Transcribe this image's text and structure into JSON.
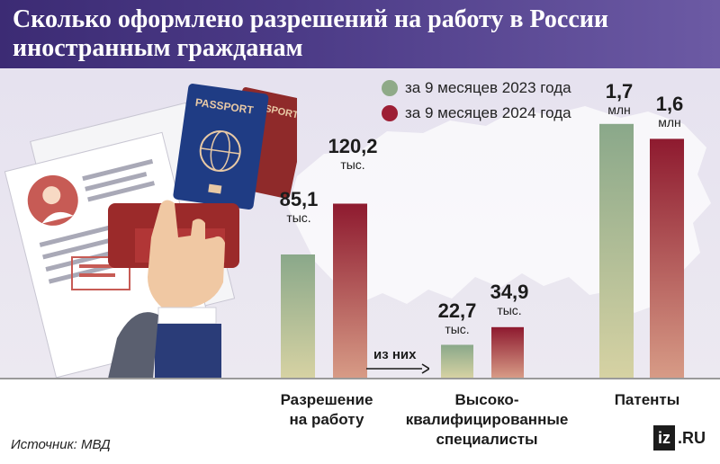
{
  "header": {
    "title": "Сколько оформлено разрешений на работу в России иностранным гражданам"
  },
  "legend": [
    {
      "label": "за 9 месяцев 2023 года",
      "color": "#8faa88"
    },
    {
      "label": "за 9 месяцев 2024 года",
      "color": "#9d1f35"
    }
  ],
  "chart_data": {
    "type": "bar",
    "title": "Сколько оформлено разрешений на работу в России иностранным гражданам",
    "categories": [
      "Разрешение на работу",
      "Высоко-квалифицированные специалисты",
      "Патенты"
    ],
    "series": [
      {
        "name": "за 9 месяцев 2023 года",
        "values": [
          85.1,
          22.7,
          1.7
        ],
        "labels": [
          "85,1",
          "22,7",
          "1,7"
        ],
        "units": [
          "тыс.",
          "тыс.",
          "млн"
        ]
      },
      {
        "name": "за 9 месяцев 2024 года",
        "values": [
          120.2,
          34.9,
          1.6
        ],
        "labels": [
          "120,2",
          "34,9",
          "1,6"
        ],
        "units": [
          "тыс.",
          "тыс.",
          "млн"
        ]
      }
    ],
    "annotations": [
      "из них"
    ]
  },
  "categories_display": {
    "work_permit": "Разрешение\nна работу",
    "specialists": "Высоко-\nквалифицированные\nспециалисты",
    "patents": "Патенты"
  },
  "annotation": {
    "of_them": "из них"
  },
  "footer": {
    "source": "Источник: МВД"
  },
  "logo": {
    "box": "iz",
    "text": ".RU"
  }
}
